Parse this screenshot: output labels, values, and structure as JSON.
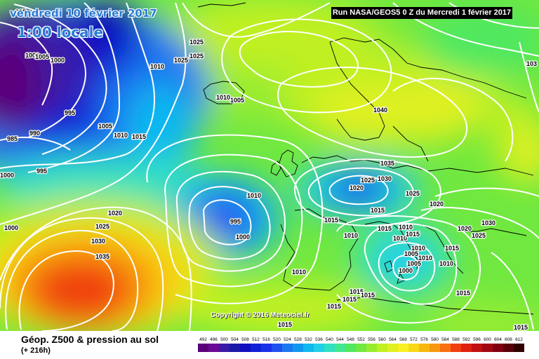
{
  "header": {
    "date": "vendredi 10 février 2017",
    "time": "1:00 locale",
    "run": "Run NASA/GEOS5 0 Z du Mercredi 1 février 2017"
  },
  "copyright": "Copyright © 2016 Meteociel.fr",
  "footer": {
    "title": "Géop. Z500 & pression au sol",
    "subtitle": "(+ 216h)"
  },
  "legend": {
    "values": [
      "492",
      "496",
      "500",
      "504",
      "508",
      "512",
      "516",
      "520",
      "524",
      "528",
      "532",
      "536",
      "540",
      "544",
      "548",
      "552",
      "556",
      "560",
      "564",
      "568",
      "572",
      "576",
      "580",
      "584",
      "588",
      "592",
      "596",
      "600",
      "604",
      "608",
      "612"
    ],
    "colors": [
      "#5a007a",
      "#6a0a96",
      "#3a1aa8",
      "#1a1aa8",
      "#1010c0",
      "#1020d8",
      "#1830e8",
      "#2050f0",
      "#1a78f0",
      "#1098f0",
      "#10b8f0",
      "#20d0e8",
      "#30e0c0",
      "#40e890",
      "#50e860",
      "#70e840",
      "#98ec30",
      "#c0f020",
      "#e0f020",
      "#f8f020",
      "#f8d818",
      "#f8b810",
      "#f89810",
      "#f87010",
      "#f04010",
      "#e02010",
      "#c01010",
      "#a00810",
      "#800010",
      "#580008",
      "#300000"
    ]
  },
  "isobar_labels": [
    {
      "text": "995"
    },
    {
      "text": "1000"
    },
    {
      "text": "1005"
    },
    {
      "text": "1000"
    },
    {
      "text": "995"
    },
    {
      "text": "990"
    },
    {
      "text": "985"
    },
    {
      "text": "1005"
    },
    {
      "text": "1010"
    },
    {
      "text": "1015"
    },
    {
      "text": "995"
    },
    {
      "text": "1000"
    },
    {
      "text": "1000"
    },
    {
      "text": "1020"
    },
    {
      "text": "1025"
    },
    {
      "text": "1030"
    },
    {
      "text": "1035"
    },
    {
      "text": "1010"
    },
    {
      "text": "1025"
    },
    {
      "text": "1025"
    },
    {
      "text": "1025"
    },
    {
      "text": "1010"
    },
    {
      "text": "1005"
    },
    {
      "text": "1010"
    },
    {
      "text": "995"
    },
    {
      "text": "1000"
    },
    {
      "text": "1015"
    },
    {
      "text": "1010"
    },
    {
      "text": "1010"
    },
    {
      "text": "1040"
    },
    {
      "text": "1035"
    },
    {
      "text": "1025"
    },
    {
      "text": "1030"
    },
    {
      "text": "1020"
    },
    {
      "text": "1025"
    },
    {
      "text": "1020"
    },
    {
      "text": "1015"
    },
    {
      "text": "1015"
    },
    {
      "text": "1010"
    },
    {
      "text": "1010"
    },
    {
      "text": "1015"
    },
    {
      "text": "1010"
    },
    {
      "text": "1005"
    },
    {
      "text": "1010"
    },
    {
      "text": "1005"
    },
    {
      "text": "1000"
    },
    {
      "text": "1010"
    },
    {
      "text": "1015"
    },
    {
      "text": "1015"
    },
    {
      "text": "1015"
    },
    {
      "text": "1015"
    },
    {
      "text": "1015"
    },
    {
      "text": "1020"
    },
    {
      "text": "1030"
    },
    {
      "text": "1025"
    },
    {
      "text": "1015"
    },
    {
      "text": "1015"
    },
    {
      "text": "1015"
    },
    {
      "text": "103"
    }
  ]
}
